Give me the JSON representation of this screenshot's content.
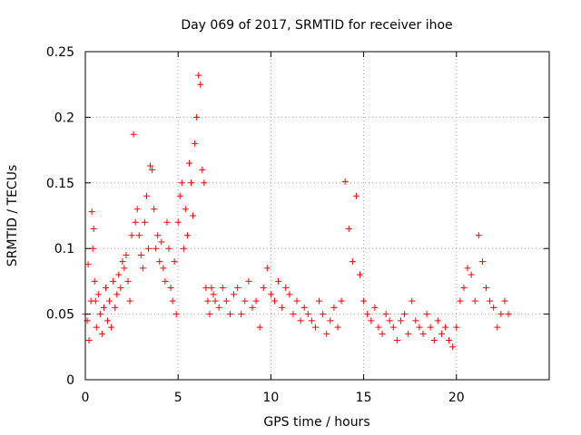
{
  "chart_data": {
    "type": "scatter",
    "title": "Day 069 of 2017, SRMTID for receiver ihoe",
    "xlabel": "GPS time / hours",
    "ylabel": "SRMTID / TECUs",
    "xlim": [
      0,
      25
    ],
    "ylim": [
      0,
      0.25
    ],
    "grid": true,
    "marker": "+",
    "color": "#ff0000",
    "x_ticks": [
      0,
      5,
      10,
      15,
      20
    ],
    "x_tick_labels": [
      "0",
      "5",
      "10",
      "15",
      "20"
    ],
    "y_ticks": [
      0,
      0.05,
      0.1,
      0.15,
      0.2,
      0.25
    ],
    "y_tick_labels": [
      "0",
      "0.05",
      "0.1",
      "0.15",
      "0.2",
      "0.25"
    ],
    "series": [
      {
        "name": "SRMTID",
        "x": [
          0.0,
          0.1,
          0.15,
          0.2,
          0.3,
          0.35,
          0.4,
          0.45,
          0.5,
          0.55,
          0.6,
          0.7,
          0.8,
          0.9,
          1.0,
          1.1,
          1.2,
          1.3,
          1.4,
          1.5,
          1.6,
          1.7,
          1.8,
          1.9,
          2.0,
          2.1,
          2.2,
          2.3,
          2.4,
          2.5,
          2.6,
          2.7,
          2.8,
          2.9,
          3.0,
          3.1,
          3.2,
          3.3,
          3.4,
          3.5,
          3.6,
          3.7,
          3.8,
          3.9,
          4.0,
          4.1,
          4.2,
          4.3,
          4.4,
          4.5,
          4.6,
          4.7,
          4.8,
          4.9,
          5.0,
          5.1,
          5.2,
          5.3,
          5.4,
          5.5,
          5.6,
          5.7,
          5.8,
          5.9,
          6.0,
          6.1,
          6.2,
          6.3,
          6.4,
          6.5,
          6.6,
          6.7,
          6.8,
          6.9,
          7.0,
          7.2,
          7.4,
          7.6,
          7.8,
          8.0,
          8.2,
          8.4,
          8.6,
          8.8,
          9.0,
          9.2,
          9.4,
          9.6,
          9.8,
          10.0,
          10.2,
          10.4,
          10.6,
          10.8,
          11.0,
          11.2,
          11.4,
          11.6,
          11.8,
          12.0,
          12.2,
          12.4,
          12.6,
          12.8,
          13.0,
          13.2,
          13.4,
          13.6,
          13.8,
          14.0,
          14.2,
          14.4,
          14.6,
          14.8,
          15.0,
          15.2,
          15.4,
          15.6,
          15.8,
          16.0,
          16.2,
          16.4,
          16.6,
          16.8,
          17.0,
          17.2,
          17.4,
          17.6,
          17.8,
          18.0,
          18.2,
          18.4,
          18.6,
          18.8,
          19.0,
          19.2,
          19.4,
          19.6,
          19.8,
          20.0,
          20.2,
          20.4,
          20.6,
          20.8,
          21.0,
          21.2,
          21.4,
          21.6,
          21.8,
          22.0,
          22.2,
          22.4,
          22.6,
          22.8
        ],
        "y": [
          0.05,
          0.045,
          0.088,
          0.03,
          0.06,
          0.128,
          0.1,
          0.115,
          0.075,
          0.06,
          0.04,
          0.065,
          0.05,
          0.035,
          0.055,
          0.07,
          0.045,
          0.06,
          0.04,
          0.075,
          0.055,
          0.065,
          0.08,
          0.07,
          0.09,
          0.085,
          0.095,
          0.075,
          0.06,
          0.11,
          0.187,
          0.12,
          0.13,
          0.11,
          0.095,
          0.085,
          0.12,
          0.14,
          0.1,
          0.163,
          0.16,
          0.13,
          0.1,
          0.11,
          0.09,
          0.105,
          0.085,
          0.075,
          0.12,
          0.1,
          0.07,
          0.06,
          0.09,
          0.05,
          0.12,
          0.14,
          0.15,
          0.1,
          0.13,
          0.11,
          0.165,
          0.15,
          0.125,
          0.18,
          0.2,
          0.232,
          0.225,
          0.16,
          0.15,
          0.07,
          0.06,
          0.05,
          0.07,
          0.065,
          0.06,
          0.055,
          0.07,
          0.06,
          0.05,
          0.065,
          0.07,
          0.05,
          0.06,
          0.075,
          0.055,
          0.06,
          0.04,
          0.07,
          0.085,
          0.065,
          0.06,
          0.075,
          0.055,
          0.07,
          0.065,
          0.05,
          0.06,
          0.045,
          0.055,
          0.05,
          0.045,
          0.04,
          0.06,
          0.05,
          0.035,
          0.045,
          0.055,
          0.04,
          0.06,
          0.151,
          0.115,
          0.09,
          0.14,
          0.08,
          0.06,
          0.05,
          0.045,
          0.055,
          0.04,
          0.035,
          0.05,
          0.045,
          0.04,
          0.03,
          0.045,
          0.05,
          0.035,
          0.06,
          0.045,
          0.04,
          0.035,
          0.05,
          0.04,
          0.03,
          0.045,
          0.035,
          0.04,
          0.03,
          0.025,
          0.04,
          0.06,
          0.07,
          0.085,
          0.08,
          0.06,
          0.11,
          0.09,
          0.07,
          0.06,
          0.055,
          0.04,
          0.05,
          0.06,
          0.05
        ]
      }
    ]
  }
}
